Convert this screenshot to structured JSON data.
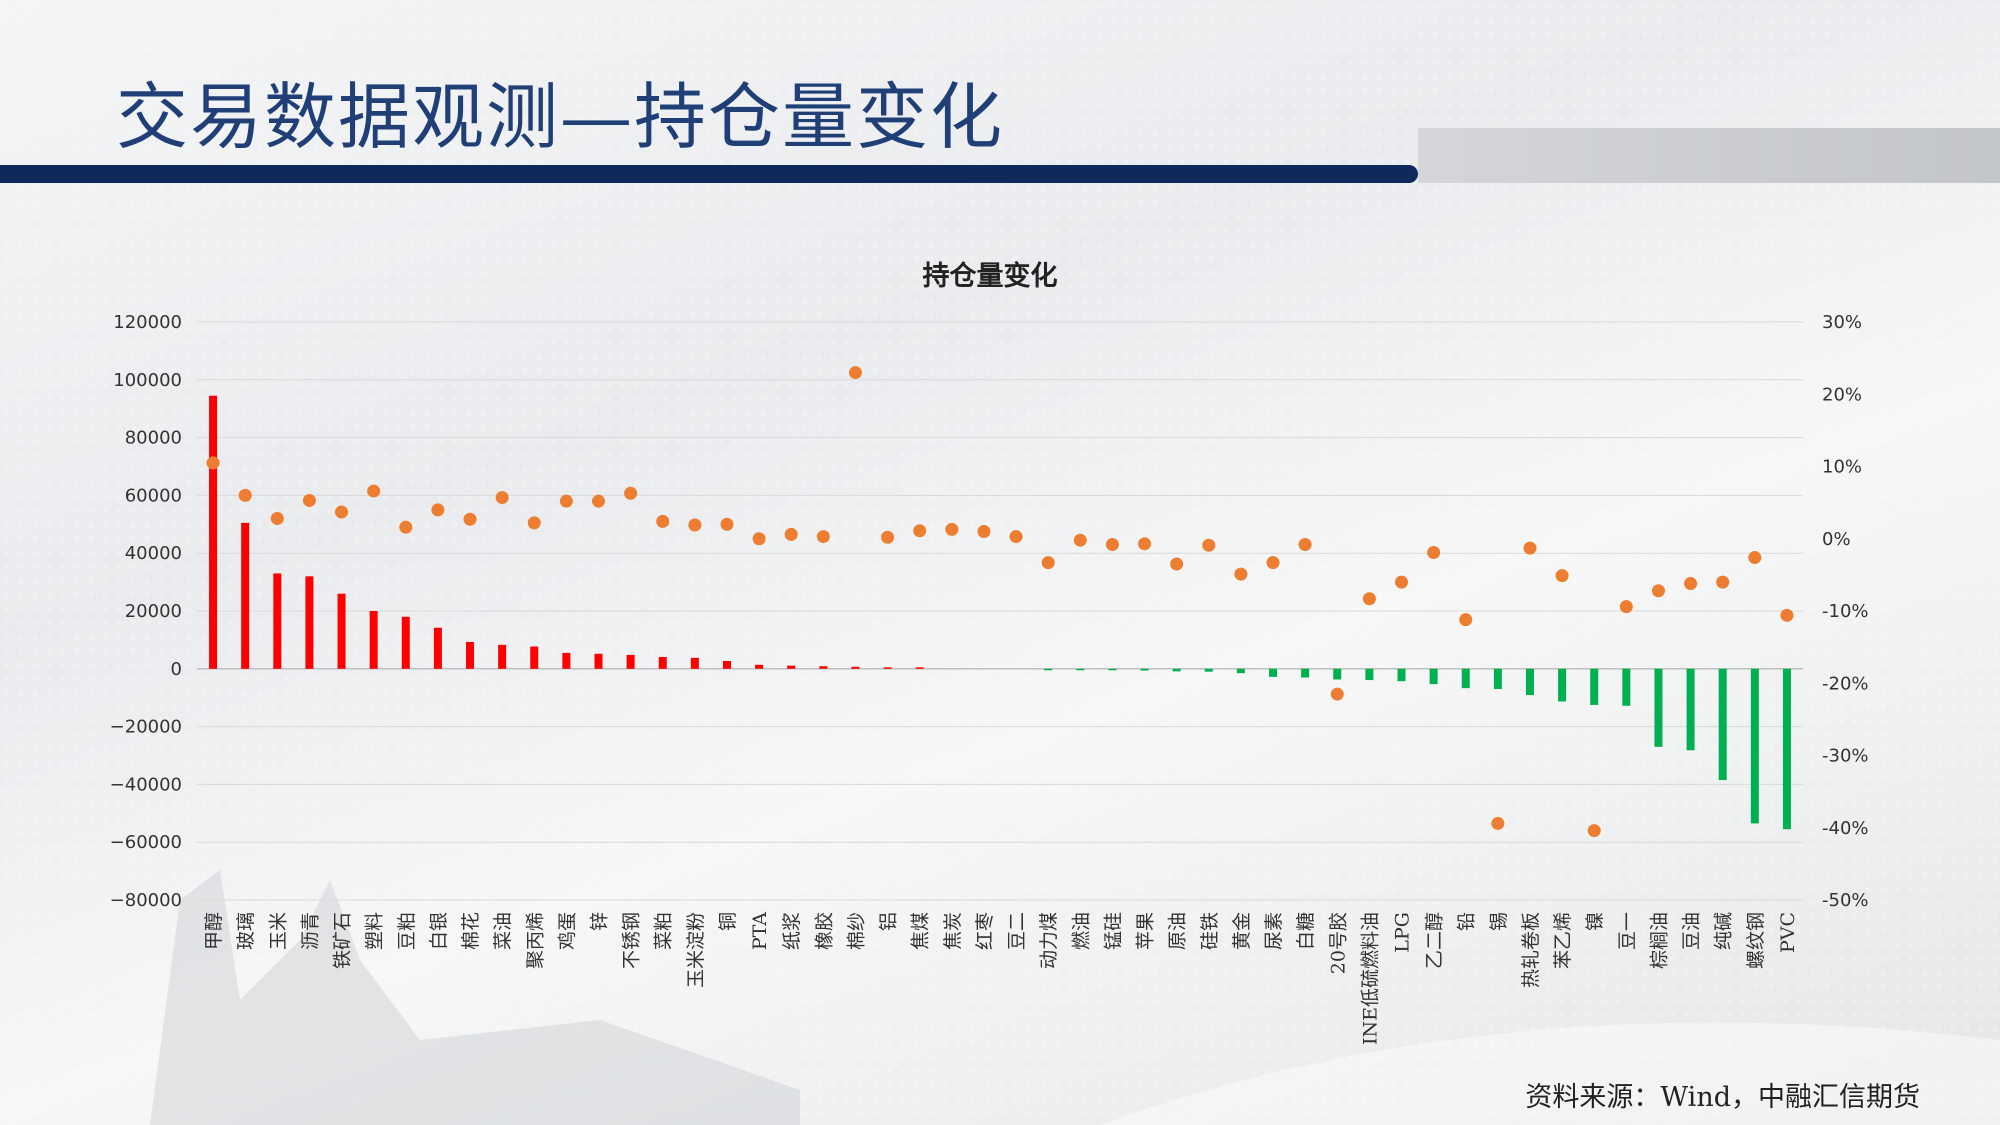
{
  "slide": {
    "title": "交易数据观测—持仓量变化",
    "source": "资料来源：Wind，中融汇信期货"
  },
  "colors": {
    "positive_bar": "#ff0000",
    "negative_bar": "#00b050",
    "pct_marker": "#ed7d31",
    "header_band": "#0e2a5c",
    "title": "#1f3f76"
  },
  "chart_data": {
    "type": "bar",
    "title": "持仓量变化",
    "xlabel": "",
    "ylabel": "",
    "ylim": [
      -80000,
      120000
    ],
    "y_ticks": [
      120000,
      100000,
      80000,
      60000,
      40000,
      20000,
      0,
      -20000,
      -40000,
      -60000,
      -80000
    ],
    "y_tick_labels": [
      "120000",
      "100000",
      "80000",
      "60000",
      "40000",
      "20000",
      "0",
      "−20000",
      "−40000",
      "−60000",
      "−80000"
    ],
    "y2lim": [
      -50,
      30
    ],
    "y2_ticks": [
      30,
      20,
      10,
      0,
      -10,
      -20,
      -30,
      -40,
      -50
    ],
    "y2_tick_labels": [
      "30%",
      "20%",
      "10%",
      "0%",
      "-10%",
      "-20%",
      "-30%",
      "-40%",
      "-50%"
    ],
    "grid": true,
    "legend": "none",
    "categories": [
      "甲醇",
      "玻璃",
      "玉米",
      "沥青",
      "铁矿石",
      "塑料",
      "豆粕",
      "白银",
      "棉花",
      "菜油",
      "聚丙烯",
      "鸡蛋",
      "锌",
      "不锈钢",
      "菜粕",
      "玉米淀粉",
      "铜",
      "PTA",
      "纸浆",
      "橡胶",
      "棉纱",
      "铝",
      "焦煤",
      "焦炭",
      "红枣",
      "豆二",
      "动力煤",
      "燃油",
      "锰硅",
      "苹果",
      "原油",
      "硅铁",
      "黄金",
      "尿素",
      "白糖",
      "20号胶",
      "INE低硫燃料油",
      "LPG",
      "乙二醇",
      "铅",
      "锡",
      "热轧卷板",
      "苯乙烯",
      "镍",
      "豆一",
      "棕榈油",
      "豆油",
      "纯碱",
      "螺纹钢",
      "PVC"
    ],
    "series": [
      {
        "type": "bar",
        "axis": "left",
        "values": [
          94500,
          50500,
          33000,
          32000,
          26000,
          20000,
          18000,
          14200,
          9300,
          8300,
          7700,
          5500,
          5200,
          4800,
          4100,
          3800,
          2700,
          1400,
          1100,
          900,
          700,
          500,
          300,
          0,
          0,
          0,
          -100,
          -200,
          -400,
          -600,
          -900,
          -1000,
          -1500,
          -2800,
          -3000,
          -3700,
          -3900,
          -4300,
          -5300,
          -6700,
          -7000,
          -9100,
          -11300,
          -12500,
          -12800,
          -27000,
          -28200,
          -38500,
          -53500,
          -55500
        ]
      },
      {
        "type": "scatter",
        "axis": "right",
        "values": [
          10.5,
          6,
          2.8,
          5.3,
          3.7,
          6.6,
          1.6,
          4,
          2.7,
          5.7,
          2.2,
          5.2,
          5.2,
          6.3,
          2.4,
          1.9,
          2,
          0,
          0.6,
          0.3,
          23,
          0.2,
          1.1,
          1.3,
          1,
          0.3,
          -3.3,
          -0.2,
          -0.8,
          -0.7,
          -3.5,
          -0.9,
          -4.9,
          -3.3,
          -0.8,
          -21.5,
          -8.3,
          -6,
          -1.9,
          -11.2,
          -39.4,
          -1.3,
          -5.1,
          -40.4,
          -9.4,
          -7.2,
          -6.2,
          -6,
          -2.6,
          -10.6
        ]
      }
    ]
  }
}
